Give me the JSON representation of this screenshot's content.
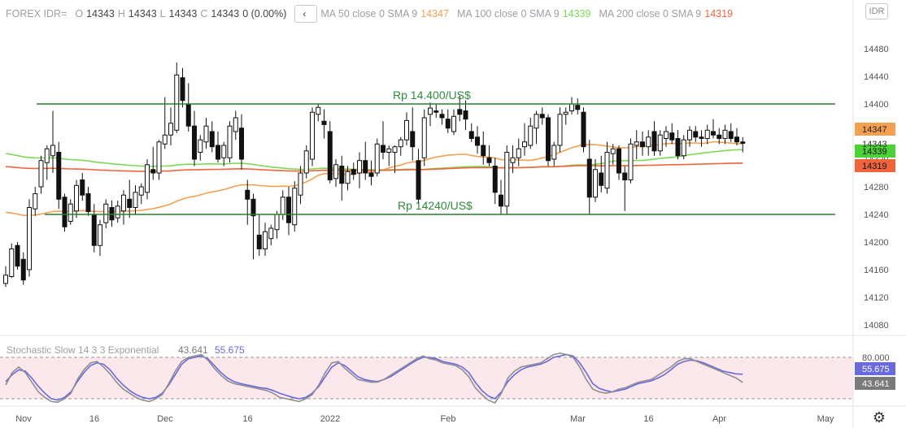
{
  "header": {
    "symbol": "FOREX IDR=",
    "ohlc": [
      {
        "key": "O",
        "value": "14343"
      },
      {
        "key": "H",
        "value": "14343"
      },
      {
        "key": "L",
        "value": "14343"
      },
      {
        "key": "C",
        "value": "14343"
      }
    ],
    "change": "0 (0.00%)",
    "collapse_icon": "chevron-left-icon",
    "indicators": [
      {
        "label": "MA 50 close 0 SMA 9",
        "value": "14347",
        "color": "#f5a050"
      },
      {
        "label": "MA 100 close 0 SMA 9",
        "value": "14339",
        "color": "#7ed957"
      },
      {
        "label": "MA 200 close 0 SMA 9",
        "value": "14319",
        "color": "#f0643c"
      }
    ]
  },
  "currency_button": "IDR",
  "settings_icon": "gear-icon",
  "chart_data": [
    {
      "type": "candlestick",
      "x_tick_labels": [
        "Nov",
        "16",
        "Dec",
        "16",
        "2022",
        "Feb",
        "Mar",
        "16",
        "Apr",
        "May"
      ],
      "x_tick_index": [
        0,
        12,
        24,
        38,
        52,
        72,
        94,
        106,
        118,
        136
      ],
      "y_tick_labels": [
        "14480",
        "14440",
        "14400",
        "14360",
        "14320",
        "14280",
        "14240",
        "14200",
        "14160",
        "14120",
        "14080"
      ],
      "ylim": [
        14060,
        14525
      ],
      "annotations": [
        {
          "text": "Rp 14.400/US$",
          "level": 14400,
          "color": "#2e8b3c"
        },
        {
          "text": "Rp 14240/US$",
          "level": 14240,
          "color": "#2e8b3c"
        }
      ],
      "last_price": "14343",
      "price_badges": [
        {
          "label": "14347",
          "color": "#f5a050"
        },
        {
          "label": "14339",
          "color": "#4cd137"
        },
        {
          "label": "14319",
          "color": "#f0643c"
        }
      ],
      "ohlc": [
        [
          14140,
          14165,
          14135,
          14152
        ],
        [
          14150,
          14198,
          14148,
          14190
        ],
        [
          14195,
          14200,
          14160,
          14165
        ],
        [
          14175,
          14185,
          14138,
          14145
        ],
        [
          14160,
          14262,
          14150,
          14250
        ],
        [
          14248,
          14280,
          14238,
          14270
        ],
        [
          14280,
          14325,
          14270,
          14318
        ],
        [
          14315,
          14340,
          14290,
          14335
        ],
        [
          14325,
          14390,
          14300,
          14340
        ],
        [
          14330,
          14345,
          14248,
          14262
        ],
        [
          14265,
          14270,
          14215,
          14222
        ],
        [
          14230,
          14262,
          14225,
          14255
        ],
        [
          14245,
          14290,
          14235,
          14282
        ],
        [
          14290,
          14300,
          14260,
          14268
        ],
        [
          14270,
          14280,
          14238,
          14244
        ],
        [
          14240,
          14255,
          14185,
          14195
        ],
        [
          14195,
          14232,
          14180,
          14225
        ],
        [
          14228,
          14262,
          14220,
          14255
        ],
        [
          14250,
          14260,
          14222,
          14232
        ],
        [
          14235,
          14260,
          14228,
          14252
        ],
        [
          14245,
          14275,
          14225,
          14268
        ],
        [
          14262,
          14290,
          14235,
          14250
        ],
        [
          14250,
          14282,
          14240,
          14272
        ],
        [
          14268,
          14285,
          14255,
          14280
        ],
        [
          14272,
          14320,
          14262,
          14312
        ],
        [
          14305,
          14338,
          14290,
          14300
        ],
        [
          14300,
          14348,
          14290,
          14345
        ],
        [
          14342,
          14410,
          14335,
          14355
        ],
        [
          14355,
          14395,
          14340,
          14372
        ],
        [
          14362,
          14460,
          14358,
          14442
        ],
        [
          14438,
          14452,
          14395,
          14405
        ],
        [
          14400,
          14430,
          14360,
          14368
        ],
        [
          14368,
          14390,
          14310,
          14320
        ],
        [
          14330,
          14355,
          14318,
          14348
        ],
        [
          14345,
          14380,
          14335,
          14368
        ],
        [
          14360,
          14375,
          14330,
          14338
        ],
        [
          14340,
          14360,
          14315,
          14320
        ],
        [
          14322,
          14345,
          14310,
          14340
        ],
        [
          14322,
          14375,
          14315,
          14368
        ],
        [
          14360,
          14390,
          14348,
          14380
        ],
        [
          14365,
          14385,
          14305,
          14320
        ],
        [
          14275,
          14290,
          14225,
          14262
        ],
        [
          14262,
          14270,
          14175,
          14238
        ],
        [
          14210,
          14240,
          14180,
          14190
        ],
        [
          14190,
          14228,
          14180,
          14215
        ],
        [
          14205,
          14225,
          14195,
          14220
        ],
        [
          14218,
          14245,
          14205,
          14240
        ],
        [
          14240,
          14275,
          14232,
          14265
        ],
        [
          14265,
          14280,
          14210,
          14228
        ],
        [
          14225,
          14288,
          14215,
          14278
        ],
        [
          14268,
          14310,
          14255,
          14300
        ],
        [
          14300,
          14340,
          14292,
          14332
        ],
        [
          14320,
          14395,
          14310,
          14388
        ],
        [
          14385,
          14400,
          14375,
          14395
        ],
        [
          14375,
          14392,
          14350,
          14370
        ],
        [
          14360,
          14375,
          14285,
          14290
        ],
        [
          14292,
          14320,
          14280,
          14312
        ],
        [
          14310,
          14325,
          14260,
          14285
        ],
        [
          14285,
          14310,
          14275,
          14302
        ],
        [
          14305,
          14315,
          14290,
          14298
        ],
        [
          14300,
          14330,
          14278,
          14318
        ],
        [
          14318,
          14345,
          14290,
          14300
        ],
        [
          14300,
          14318,
          14282,
          14295
        ],
        [
          14300,
          14350,
          14295,
          14342
        ],
        [
          14340,
          14375,
          14320,
          14330
        ],
        [
          14330,
          14340,
          14310,
          14335
        ],
        [
          14330,
          14340,
          14300,
          14338
        ],
        [
          14338,
          14352,
          14325,
          14348
        ],
        [
          14348,
          14388,
          14340,
          14376
        ],
        [
          14360,
          14395,
          14318,
          14338
        ],
        [
          14318,
          14335,
          14255,
          14262
        ],
        [
          14322,
          14392,
          14310,
          14380
        ],
        [
          14385,
          14402,
          14368,
          14394
        ],
        [
          14390,
          14400,
          14380,
          14388
        ],
        [
          14385,
          14392,
          14370,
          14380
        ],
        [
          14378,
          14392,
          14358,
          14365
        ],
        [
          14360,
          14392,
          14355,
          14382
        ],
        [
          14392,
          14412,
          14375,
          14385
        ],
        [
          14390,
          14405,
          14362,
          14378
        ],
        [
          14360,
          14372,
          14345,
          14350
        ],
        [
          14352,
          14368,
          14328,
          14340
        ],
        [
          14340,
          14360,
          14312,
          14325
        ],
        [
          14322,
          14340,
          14310,
          14315
        ],
        [
          14310,
          14322,
          14255,
          14272
        ],
        [
          14268,
          14290,
          14240,
          14252
        ],
        [
          14252,
          14340,
          14240,
          14330
        ],
        [
          14315,
          14340,
          14300,
          14322
        ],
        [
          14322,
          14350,
          14310,
          14335
        ],
        [
          14338,
          14372,
          14325,
          14345
        ],
        [
          14340,
          14380,
          14335,
          14368
        ],
        [
          14365,
          14390,
          14342,
          14385
        ],
        [
          14385,
          14395,
          14370,
          14380
        ],
        [
          14380,
          14385,
          14310,
          14318
        ],
        [
          14320,
          14345,
          14310,
          14340
        ],
        [
          14340,
          14395,
          14330,
          14385
        ],
        [
          14385,
          14395,
          14370,
          14388
        ],
        [
          14390,
          14410,
          14385,
          14400
        ],
        [
          14398,
          14408,
          14385,
          14392
        ],
        [
          14388,
          14395,
          14330,
          14338
        ],
        [
          14320,
          14348,
          14240,
          14265
        ],
        [
          14265,
          14320,
          14258,
          14305
        ],
        [
          14300,
          14325,
          14272,
          14282
        ],
        [
          14278,
          14345,
          14270,
          14330
        ],
        [
          14328,
          14342,
          14312,
          14335
        ],
        [
          14335,
          14340,
          14290,
          14300
        ],
        [
          14300,
          14310,
          14245,
          14290
        ],
        [
          14290,
          14350,
          14285,
          14342
        ],
        [
          14340,
          14362,
          14320,
          14345
        ],
        [
          14345,
          14360,
          14325,
          14338
        ],
        [
          14338,
          14362,
          14325,
          14352
        ],
        [
          14360,
          14375,
          14325,
          14332
        ],
        [
          14332,
          14362,
          14325,
          14355
        ],
        [
          14350,
          14368,
          14338,
          14360
        ],
        [
          14358,
          14372,
          14342,
          14348
        ],
        [
          14350,
          14362,
          14320,
          14325
        ],
        [
          14325,
          14355,
          14320,
          14348
        ],
        [
          14348,
          14368,
          14338,
          14362
        ],
        [
          14360,
          14368,
          14345,
          14352
        ],
        [
          14352,
          14362,
          14338,
          14350
        ],
        [
          14350,
          14370,
          14342,
          14362
        ],
        [
          14360,
          14378,
          14350,
          14355
        ],
        [
          14355,
          14365,
          14342,
          14350
        ],
        [
          14350,
          14370,
          14342,
          14362
        ],
        [
          14360,
          14372,
          14345,
          14350
        ],
        [
          14352,
          14365,
          14340,
          14345
        ],
        [
          14345,
          14352,
          14330,
          14343
        ]
      ]
    },
    {
      "type": "line",
      "title": "Stochastic Slow 14 3 3 Exponential",
      "legend_values": [
        {
          "label": "43.641",
          "color": "#7a7a7a"
        },
        {
          "label": "55.675",
          "color": "#6a6adf"
        }
      ],
      "y_tick_labels": [
        "80.000"
      ],
      "ylim": [
        0,
        100
      ],
      "band": [
        20,
        80
      ],
      "series": [
        {
          "values": [
            45,
            55,
            62,
            60,
            50,
            38,
            28,
            20,
            18,
            22,
            30,
            45,
            58,
            68,
            72,
            70,
            62,
            50,
            40,
            32,
            26,
            22,
            20,
            22,
            28,
            40,
            55,
            70,
            78,
            80,
            82,
            78,
            68,
            58,
            50,
            45,
            42,
            40,
            38,
            36,
            35,
            32,
            28,
            25,
            22,
            20,
            22,
            28,
            38,
            52,
            66,
            72,
            68,
            60,
            52,
            48,
            46,
            45,
            48,
            52,
            58,
            64,
            70,
            76,
            80,
            80,
            78,
            74,
            72,
            70,
            66,
            58,
            44,
            32,
            24,
            20,
            30,
            45,
            55,
            62,
            66,
            68,
            70,
            74,
            80,
            82,
            84,
            82,
            72,
            58,
            42,
            35,
            32,
            30,
            32,
            34,
            38,
            42,
            44,
            46,
            50,
            55,
            62,
            70,
            74,
            76,
            75,
            72,
            68,
            64,
            60,
            58,
            56,
            55.675
          ]
        },
        {
          "values": [
            40,
            58,
            66,
            58,
            44,
            30,
            22,
            16,
            15,
            20,
            28,
            48,
            62,
            72,
            74,
            66,
            56,
            44,
            34,
            28,
            22,
            18,
            16,
            20,
            26,
            42,
            60,
            74,
            80,
            82,
            84,
            76,
            64,
            54,
            46,
            42,
            40,
            38,
            36,
            34,
            32,
            28,
            22,
            20,
            18,
            16,
            20,
            26,
            40,
            58,
            72,
            74,
            64,
            56,
            48,
            46,
            44,
            44,
            48,
            54,
            60,
            66,
            72,
            78,
            82,
            78,
            76,
            72,
            70,
            68,
            62,
            52,
            36,
            26,
            18,
            14,
            28,
            50,
            60,
            66,
            68,
            70,
            72,
            78,
            84,
            86,
            84,
            80,
            66,
            48,
            34,
            30,
            28,
            30,
            34,
            36,
            40,
            44,
            46,
            48,
            54,
            60,
            66,
            74,
            78,
            78,
            74,
            70,
            66,
            62,
            58,
            54,
            50,
            43.641
          ]
        }
      ]
    }
  ]
}
